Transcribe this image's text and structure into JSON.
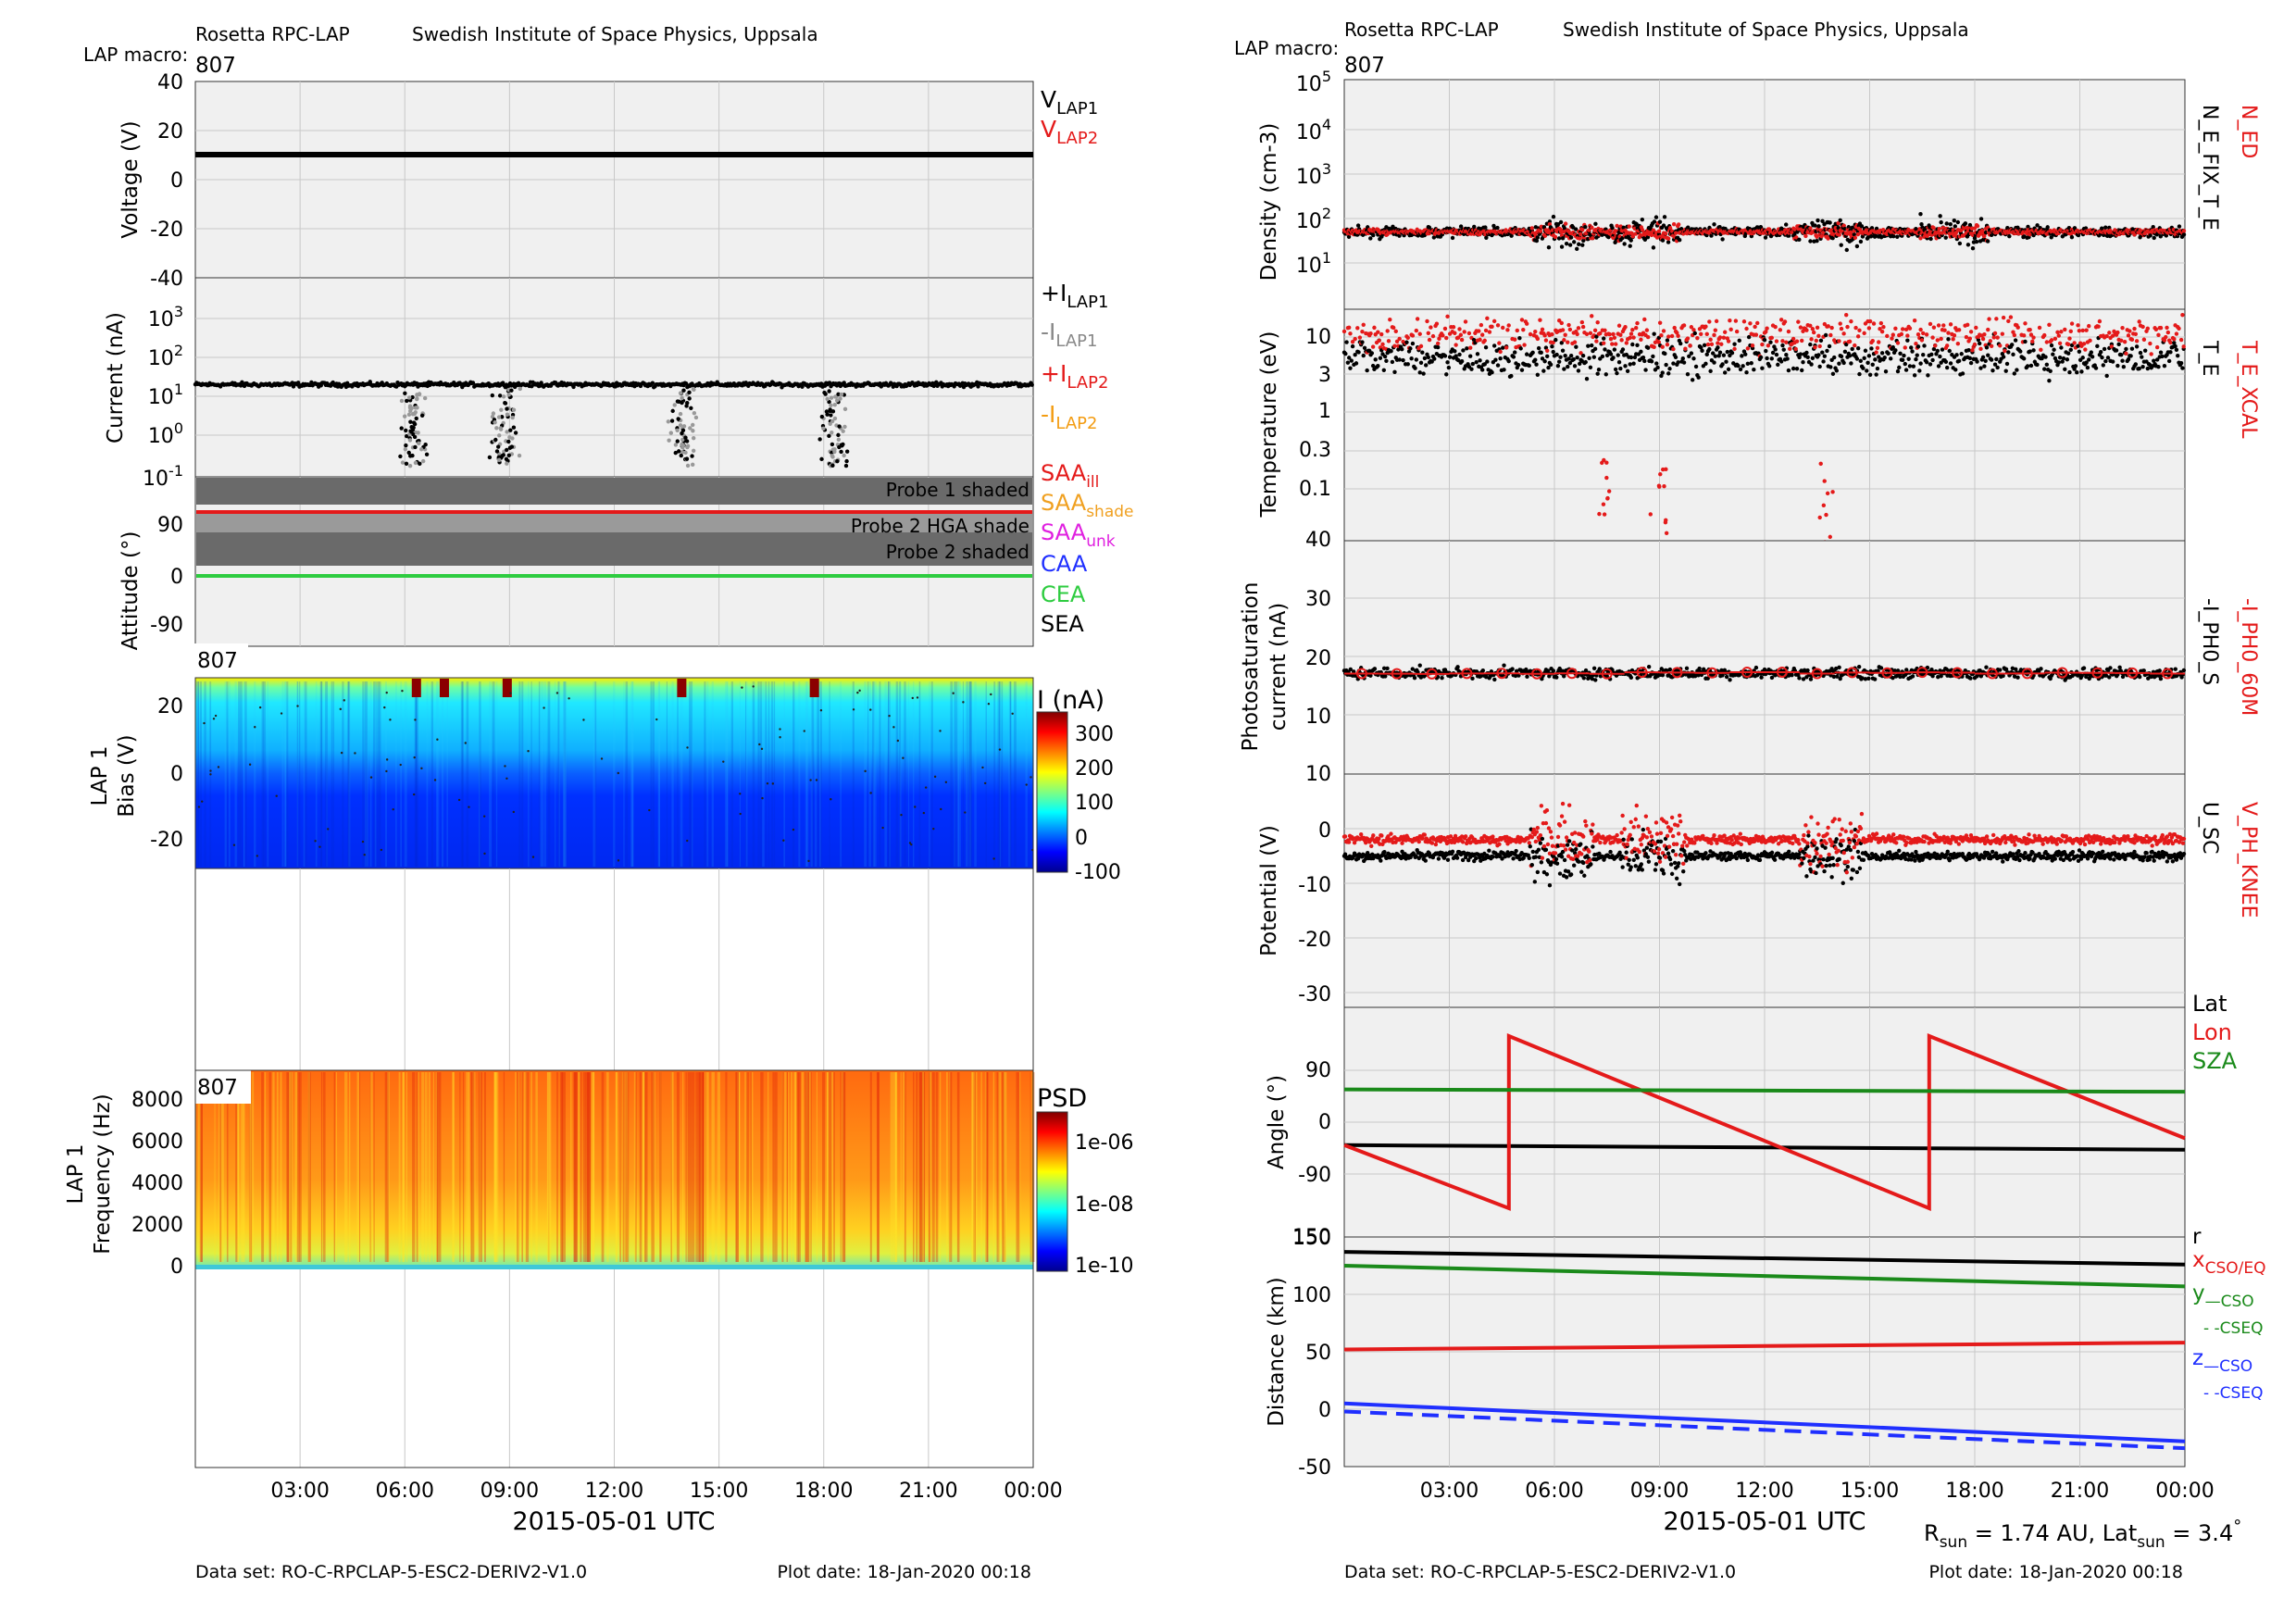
{
  "left": {
    "header_left": "Rosetta RPC-LAP",
    "header_right": "Swedish Institute of Space Physics, Uppsala",
    "macro_label": "LAP macro:",
    "macro_value": "807",
    "footer_dataset": "Data set: RO-C-RPCLAP-5-ESC2-DERIV2-V1.0",
    "footer_plotdate": "Plot date: 18-Jan-2020 00:18",
    "xlabel": "2015-05-01 UTC"
  },
  "right": {
    "header_left": "Rosetta RPC-LAP",
    "header_right": "Swedish Institute of Space Physics, Uppsala",
    "macro_label": "LAP macro:",
    "macro_value": "807",
    "footer_dataset": "Data set: RO-C-RPCLAP-5-ESC2-DERIV2-V1.0",
    "footer_plotdate": "Plot date: 18-Jan-2020 00:18",
    "xlabel": "2015-05-01 UTC"
  },
  "colors": {
    "black": "#000000",
    "red": "#e41a1a",
    "gray": "#888888",
    "orange": "#f39c12",
    "green": "#2ecc40",
    "darkgreen": "#1a8a1a",
    "blue": "#1f2fff",
    "magenta": "#e020e0",
    "panel_bg": "#f0f0f0"
  },
  "chart_data": [
    {
      "id": "voltage",
      "type": "line",
      "ylabel": "Voltage (V)",
      "ylim": [
        -40,
        40
      ],
      "yticks": [
        "40",
        "20",
        "0",
        "-20",
        "-40"
      ],
      "series": [
        {
          "name": "V_LAP1",
          "values": [
            10,
            10
          ]
        },
        {
          "name": "V_LAP2",
          "values": [
            10,
            10
          ]
        }
      ],
      "legend": [
        {
          "text": "V",
          "sub": "LAP1",
          "color": "#000000"
        },
        {
          "text": "V",
          "sub": "LAP2",
          "color": "#e41a1a"
        }
      ]
    },
    {
      "id": "current",
      "type": "scatter",
      "ylabel": "Current (nA)",
      "yscale": "log",
      "ylim": [
        0.1,
        3000
      ],
      "yticks": [
        {
          "base": "10",
          "exp": "3"
        },
        {
          "base": "10",
          "exp": "2"
        },
        {
          "base": "10",
          "exp": "1"
        },
        {
          "base": "10",
          "exp": "0"
        },
        {
          "base": "10",
          "exp": "-1"
        }
      ],
      "typical_value": 20,
      "dip_times_h": [
        6.2,
        8.8,
        14.0,
        18.3
      ],
      "legend": [
        {
          "text": "+I",
          "sub": "LAP1",
          "color": "#000000"
        },
        {
          "text": "-I",
          "sub": "LAP1",
          "color": "#888888"
        },
        {
          "text": "+I",
          "sub": "LAP2",
          "color": "#e41a1a"
        },
        {
          "text": "-I",
          "sub": "LAP2",
          "color": "#f39c12"
        }
      ]
    },
    {
      "id": "attitude",
      "type": "line",
      "ylabel": "Attitude (°)",
      "ylim": [
        -120,
        140
      ],
      "yticks": [
        "90",
        "0",
        "-90"
      ],
      "bands": [
        "Probe 1 shaded",
        "Probe 2 HGA shade",
        "Probe 2 shaded"
      ],
      "lines": [
        {
          "name": "SAA_ill",
          "value": 97
        },
        {
          "name": "CEA",
          "value": 0
        }
      ],
      "legend": [
        {
          "text": "SAA",
          "sub": "ill",
          "color": "#e41a1a"
        },
        {
          "text": "SAA",
          "sub": "shade",
          "color": "#f0a020"
        },
        {
          "text": "SAA",
          "sub": "unk",
          "color": "#e020e0"
        },
        {
          "text": "CAA",
          "sub": "",
          "color": "#1f2fff"
        },
        {
          "text": "CEA",
          "sub": "",
          "color": "#2ecc40"
        },
        {
          "text": "SEA",
          "sub": "",
          "color": "#000000"
        }
      ]
    },
    {
      "id": "sweep",
      "type": "heatmap",
      "ylabel": [
        "LAP 1",
        "Bias (V)"
      ],
      "ylim": [
        -30,
        30
      ],
      "yticks": [
        "20",
        "0",
        "-20"
      ],
      "macro": "807",
      "colorbar": {
        "title": "I (nA)",
        "ticks": [
          "300",
          "200",
          "100",
          "0",
          "-100"
        ],
        "range": [
          -100,
          330
        ]
      }
    },
    {
      "id": "spectrum",
      "type": "heatmap",
      "ylabel": [
        "LAP 1",
        "Frequency (Hz)"
      ],
      "ylim": [
        0,
        9500
      ],
      "yticks": [
        "8000",
        "6000",
        "4000",
        "2000",
        "0"
      ],
      "macro": "807",
      "colorbar": {
        "title": "PSD",
        "ticks": [
          "1e-06",
          "1e-08",
          "1e-10"
        ]
      }
    },
    {
      "id": "density",
      "type": "scatter",
      "ylabel": "Density (cm-3)",
      "yscale": "log",
      "ylim": [
        1,
        100000
      ],
      "yticks": [
        {
          "base": "10",
          "exp": "5"
        },
        {
          "base": "10",
          "exp": "4"
        },
        {
          "base": "10",
          "exp": "3"
        },
        {
          "base": "10",
          "exp": "2"
        },
        {
          "base": "10",
          "exp": "1"
        }
      ],
      "typical_value": 50,
      "legend": [
        {
          "text": "N_ED",
          "color": "#e41a1a"
        },
        {
          "text": "N_E_FIX_T_E",
          "color": "#000000"
        }
      ]
    },
    {
      "id": "temperature",
      "type": "scatter",
      "ylabel": "Temperature (eV)",
      "yscale": "log",
      "ylim": [
        0.01,
        20
      ],
      "yticks": [
        "10",
        "3",
        "1",
        "0.3",
        "0.1"
      ],
      "bottom_tick": "40",
      "typical_value": {
        "T_E_XCAL": 10,
        "T_E": 5
      },
      "legend": [
        {
          "text": "T_E_XCAL",
          "color": "#e41a1a"
        },
        {
          "text": "T_E",
          "color": "#000000"
        }
      ]
    },
    {
      "id": "photosat",
      "type": "scatter",
      "ylabel": [
        "Photosaturation",
        "current (nA)"
      ],
      "ylim": [
        0,
        35
      ],
      "yticks": [
        "30",
        "20",
        "10"
      ],
      "bottom_tick": "10",
      "typical_value": 20,
      "legend": [
        {
          "text": "-I_PH0_60M",
          "color": "#e41a1a"
        },
        {
          "text": "-I_PH0_S",
          "color": "#000000"
        }
      ]
    },
    {
      "id": "potential",
      "type": "scatter",
      "ylabel": "Potential (V)",
      "ylim": [
        -32,
        5
      ],
      "yticks": [
        "0",
        "-10",
        "-20",
        "-30"
      ],
      "typical_value": {
        "V_PH_KNEE": -2,
        "U_SC": -5
      },
      "legend": [
        {
          "text": "V_PH_KNEE",
          "color": "#e41a1a"
        },
        {
          "text": "U_SC",
          "color": "#000000"
        }
      ]
    },
    {
      "id": "angle",
      "type": "line",
      "ylabel": "Angle (°)",
      "ylim": [
        -160,
        160
      ],
      "yticks": [
        "90",
        "0",
        "-90"
      ],
      "bottom_tick": "150",
      "series": [
        {
          "name": "Lat",
          "x": [
            0,
            24
          ],
          "values": [
            -40,
            -48
          ]
        },
        {
          "name": "Lon",
          "x": [
            0,
            4.7,
            4.7,
            16.7,
            16.7,
            24
          ],
          "values": [
            -40,
            -150,
            150,
            -150,
            150,
            -28
          ]
        },
        {
          "name": "SZA",
          "x": [
            0,
            24
          ],
          "values": [
            57,
            53
          ]
        }
      ],
      "legend": [
        {
          "text": "Lat",
          "color": "#000000"
        },
        {
          "text": "Lon",
          "color": "#e41a1a"
        },
        {
          "text": "SZA",
          "color": "#1a8a1a"
        }
      ]
    },
    {
      "id": "distance",
      "type": "line",
      "ylabel": "Distance (km)",
      "ylim": [
        -50,
        150
      ],
      "yticks": [
        "150",
        "100",
        "50",
        "0",
        "-50"
      ],
      "series": [
        {
          "name": "r",
          "x": [
            0,
            24
          ],
          "values": [
            137,
            126
          ]
        },
        {
          "name": "x",
          "x": [
            0,
            24
          ],
          "values": [
            52,
            58
          ]
        },
        {
          "name": "y",
          "x": [
            0,
            24
          ],
          "values": [
            125,
            107
          ]
        },
        {
          "name": "z",
          "x": [
            0,
            24
          ],
          "values": [
            5,
            -28
          ]
        },
        {
          "name": "z CSEQ",
          "x": [
            0,
            24
          ],
          "values": [
            -2,
            -34
          ]
        }
      ],
      "legend": [
        {
          "text": "r",
          "sub": "",
          "color": "#000000"
        },
        {
          "text": "x",
          "sub": "CSO/EQ",
          "color": "#e41a1a"
        },
        {
          "text": "y",
          "sub": "—CSO",
          "color": "#1a8a1a"
        },
        {
          "text": "- -CSEQ",
          "sub": "",
          "color": "#1a8a1a"
        },
        {
          "text": "z",
          "sub": "—CSO",
          "color": "#1f2fff"
        },
        {
          "text": "- -CSEQ",
          "sub": "",
          "color": "#1f2fff"
        }
      ],
      "info": {
        "r_label": "R",
        "r_sub": "sun",
        "r_value": " = 1.74 AU, Lat",
        "lat_sub": "sun",
        "lat_value": " = 3.4",
        "deg": "°"
      }
    }
  ],
  "time_axis": {
    "range_h": [
      0,
      24
    ],
    "tick_hours": [
      3,
      6,
      9,
      12,
      15,
      18,
      21,
      24
    ],
    "tick_labels": [
      "03:00",
      "06:00",
      "09:00",
      "12:00",
      "15:00",
      "18:00",
      "21:00",
      "00:00"
    ]
  }
}
